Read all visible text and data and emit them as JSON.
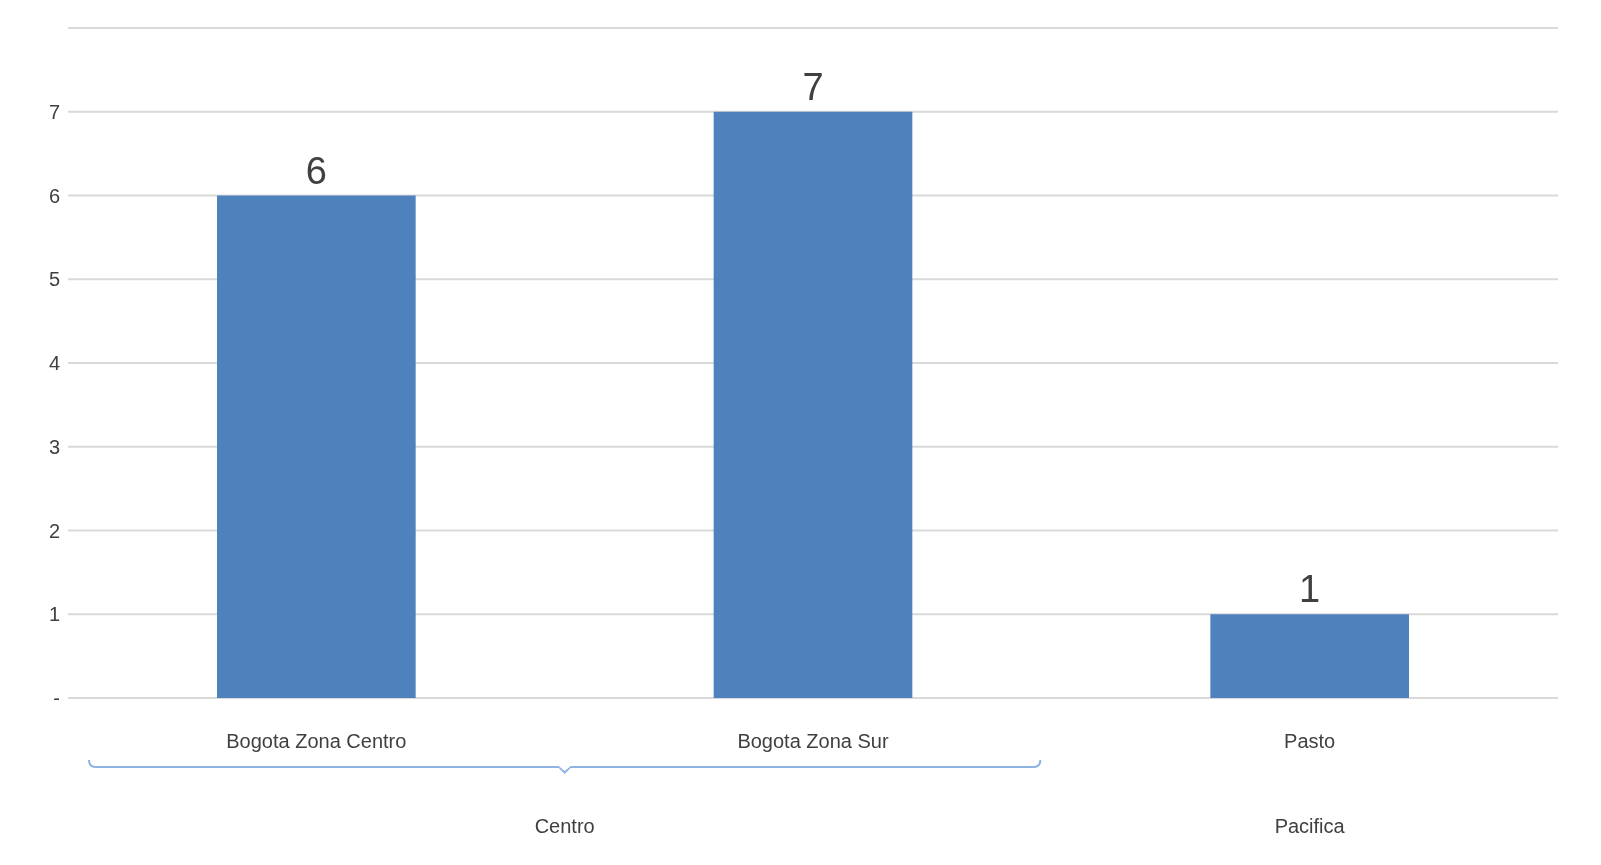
{
  "chart_data": {
    "type": "bar",
    "categories": [
      "Bogota Zona Centro",
      "Bogota Zona Sur",
      "Pasto"
    ],
    "values": [
      6,
      7,
      1
    ],
    "color": "#4f81bd",
    "ylim": [
      0,
      8
    ],
    "yticks": [
      {
        "value": 0,
        "label": "-"
      },
      1,
      2,
      3,
      4,
      5,
      6,
      7,
      {
        "value": 8,
        "label": null
      }
    ],
    "grid": "y",
    "data_labels": true,
    "annotations": [
      "Centro",
      "Pacifica"
    ]
  }
}
